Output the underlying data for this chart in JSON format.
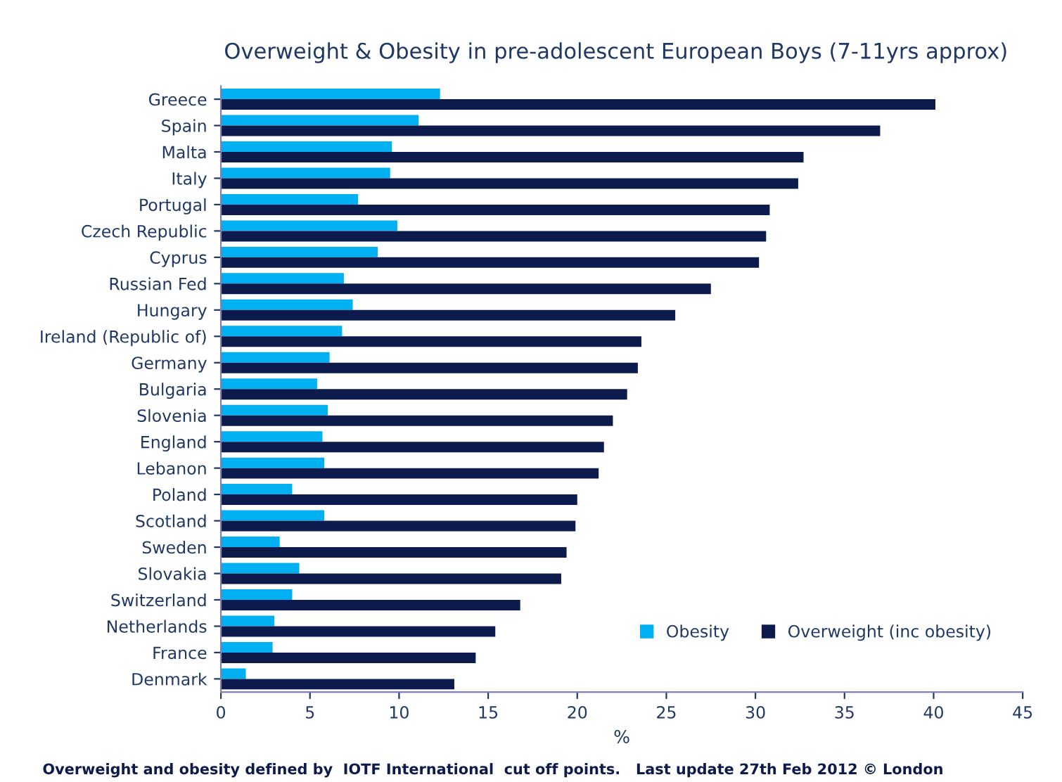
{
  "chart_data": {
    "type": "bar",
    "orientation": "horizontal",
    "title": "Overweight & Obesity in pre-adolescent European Boys (7-11yrs approx)",
    "xlabel": "%",
    "categories": [
      "Greece",
      "Spain",
      "Malta",
      "Italy",
      "Portugal",
      "Czech Republic",
      "Cyprus",
      "Russian Fed",
      "Hungary",
      "Ireland (Republic of)",
      "Germany",
      "Bulgaria",
      "Slovenia",
      "England",
      "Lebanon",
      "Poland",
      "Scotland",
      "Sweden",
      "Slovakia",
      "Switzerland",
      "Netherlands",
      "France",
      "Denmark"
    ],
    "series": [
      {
        "name": "Obesity",
        "color": "#00b0f0",
        "values": [
          12.3,
          11.1,
          9.6,
          9.5,
          7.7,
          9.9,
          8.8,
          6.9,
          7.4,
          6.8,
          6.1,
          5.4,
          6.0,
          5.7,
          5.8,
          4.0,
          5.8,
          3.3,
          4.4,
          4.0,
          3.0,
          2.9,
          1.4
        ]
      },
      {
        "name": "Overweight (inc obesity)",
        "color": "#0d1b4c",
        "values": [
          40.1,
          37.0,
          32.7,
          32.4,
          30.8,
          30.6,
          30.2,
          27.5,
          25.5,
          23.6,
          23.4,
          22.8,
          22.0,
          21.5,
          21.2,
          20.0,
          19.9,
          19.4,
          19.1,
          16.8,
          15.4,
          14.3,
          13.1
        ]
      }
    ],
    "xlim": [
      0,
      45
    ],
    "xticks": [
      0,
      5,
      10,
      15,
      20,
      25,
      30,
      35,
      40,
      45
    ],
    "grid": false,
    "legend": "bottom right",
    "annotations": [
      "Overweight and obesity defined by  IOTF International  cut off points.   Last update 27th Feb 2012 © London"
    ]
  }
}
